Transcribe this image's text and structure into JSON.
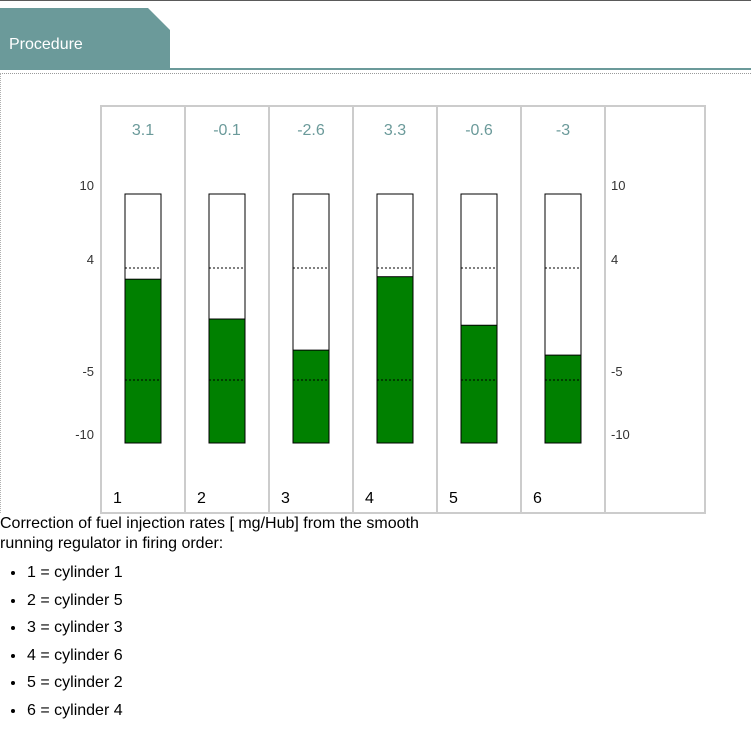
{
  "header": {
    "tab_label": "Procedure"
  },
  "chart_data": {
    "type": "bar",
    "categories": [
      "1",
      "2",
      "3",
      "4",
      "5",
      "6"
    ],
    "values": [
      3.1,
      -0.1,
      -2.6,
      3.3,
      -0.6,
      -3
    ],
    "value_labels": [
      "3.1",
      "-0.1",
      "-2.6",
      "3.3",
      "-0.6",
      "-3"
    ],
    "yticks": [
      10,
      4,
      -5,
      -10
    ],
    "ylim": [
      -10,
      10
    ],
    "reference_lines": [
      4,
      -5
    ],
    "bar_color": "#008000",
    "value_label_color": "#6b9a9a",
    "xlabel": "",
    "ylabel": "",
    "title": ""
  },
  "caption": "Correction of fuel injection rates [ mg/Hub] from the smooth running regulator in firing order:",
  "legend_items": [
    "1 = cylinder 1",
    "2 = cylinder 5",
    "3 = cylinder 3",
    "4 = cylinder 6",
    "5 = cylinder 2",
    "6 = cylinder 4"
  ]
}
